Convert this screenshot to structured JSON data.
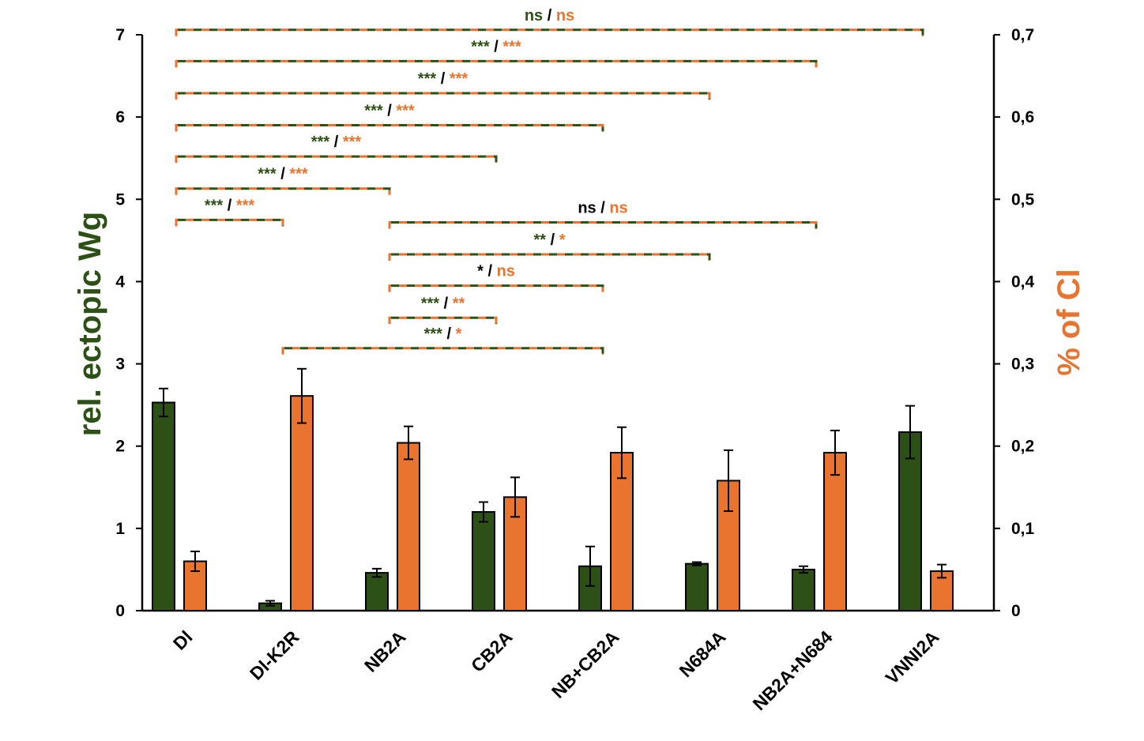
{
  "chart_data": {
    "type": "bar",
    "categories": [
      "Dl",
      "Dl-K2R",
      "NB2A",
      "CB2A",
      "NB+CB2A",
      "N684A",
      "NB2A+N684",
      "VNNI2A"
    ],
    "series": [
      {
        "name": "rel. ectopic Wg",
        "axis": "left",
        "color": "#2d5016",
        "values": [
          2.53,
          0.09,
          0.46,
          1.2,
          0.54,
          0.57,
          0.5,
          2.17
        ],
        "errors": [
          0.17,
          0.03,
          0.05,
          0.12,
          0.24,
          0.02,
          0.04,
          0.32
        ]
      },
      {
        "name": "% of Cl",
        "axis": "right",
        "color": "#e8742f",
        "values": [
          0.06,
          0.261,
          0.204,
          0.138,
          0.192,
          0.158,
          0.192,
          0.048
        ],
        "errors": [
          0.012,
          0.033,
          0.02,
          0.024,
          0.031,
          0.037,
          0.027,
          0.008
        ]
      }
    ],
    "ylabel": "rel. ectopic Wg",
    "ylabel_color": "#2d5016",
    "y2label": "% of Cl",
    "y2label_color": "#e8742f",
    "ylim": [
      0,
      7
    ],
    "y2lim": [
      0,
      0.7
    ],
    "yticks": [
      "0",
      "1",
      "2",
      "3",
      "4",
      "5",
      "6",
      "7"
    ],
    "y2ticks": [
      "0",
      "0,1",
      "0,2",
      "0,3",
      "0,4",
      "0,5",
      "0,6",
      "0,7"
    ],
    "grid": false,
    "significance": [
      {
        "from": 0,
        "to": 1,
        "level": 4.75,
        "left": "***",
        "right": "***",
        "left_color": "#2d5016",
        "right_color": "#e8742f"
      },
      {
        "from": 0,
        "to": 2,
        "level": 5.13,
        "left": "***",
        "right": "***",
        "left_color": "#2d5016",
        "right_color": "#e8742f"
      },
      {
        "from": 0,
        "to": 3,
        "level": 5.52,
        "left": "***",
        "right": "***",
        "left_color": "#2d5016",
        "right_color": "#e8742f"
      },
      {
        "from": 0,
        "to": 4,
        "level": 5.9,
        "left": "***",
        "right": "***",
        "left_color": "#2d5016",
        "right_color": "#e8742f"
      },
      {
        "from": 0,
        "to": 5,
        "level": 6.29,
        "left": "***",
        "right": "***",
        "left_color": "#2d5016",
        "right_color": "#e8742f"
      },
      {
        "from": 0,
        "to": 6,
        "level": 6.68,
        "left": "***",
        "right": "***",
        "left_color": "#2d5016",
        "right_color": "#e8742f"
      },
      {
        "from": 0,
        "to": 7,
        "level": 7.06,
        "left": "ns",
        "right": "ns",
        "left_color": "#2d5016",
        "right_color": "#e8742f"
      },
      {
        "from": 1,
        "to": 4,
        "level": 3.19,
        "left": "***",
        "right": "*",
        "left_color": "#2d5016",
        "right_color": "#e8742f"
      },
      {
        "from": 2,
        "to": 3,
        "level": 3.56,
        "left": "***",
        "right": "**",
        "left_color": "#2d5016",
        "right_color": "#e8742f"
      },
      {
        "from": 2,
        "to": 4,
        "level": 3.95,
        "left": "*",
        "right": "ns",
        "left_color": "#000000",
        "right_color": "#e8742f"
      },
      {
        "from": 2,
        "to": 5,
        "level": 4.33,
        "left": "**",
        "right": "*",
        "left_color": "#2d5016",
        "right_color": "#e8742f"
      },
      {
        "from": 2,
        "to": 6,
        "level": 4.72,
        "left": "ns",
        "right": "ns",
        "left_color": "#000000",
        "right_color": "#e8742f"
      }
    ]
  }
}
